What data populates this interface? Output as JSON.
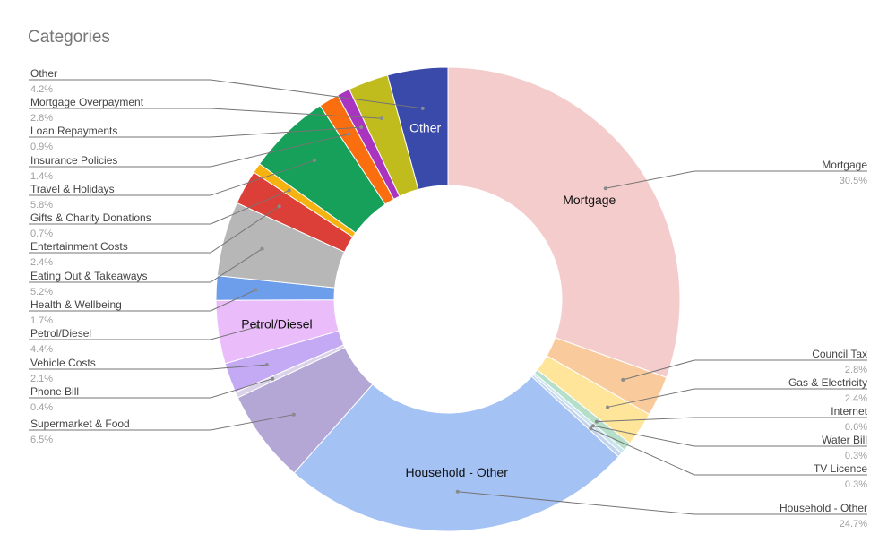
{
  "chart_data": {
    "type": "pie",
    "style": "donut",
    "title": "Categories",
    "slices": [
      {
        "name": "Mortgage",
        "value": 30.5,
        "percent_label": "30.5%",
        "color": "#f4cccc",
        "inside_label": "Mortgage"
      },
      {
        "name": "Council Tax",
        "value": 2.8,
        "percent_label": "2.8%",
        "color": "#f9cb9c"
      },
      {
        "name": "Gas & Electricity",
        "value": 2.4,
        "percent_label": "2.4%",
        "color": "#ffe599"
      },
      {
        "name": "Internet",
        "value": 0.6,
        "percent_label": "0.6%",
        "color": "#b6dfca"
      },
      {
        "name": "Water Bill",
        "value": 0.3,
        "percent_label": "0.3%",
        "color": "#c9e4ef"
      },
      {
        "name": "TV Licence",
        "value": 0.3,
        "percent_label": "0.3%",
        "color": "#c4d3ec"
      },
      {
        "name": "Household - Other",
        "value": 24.7,
        "percent_label": "24.7%",
        "color": "#a4c2f4",
        "inside_label": "Household - Other"
      },
      {
        "name": "Supermarket & Food",
        "value": 6.5,
        "percent_label": "6.5%",
        "color": "#b4a7d6"
      },
      {
        "name": "Phone Bill",
        "value": 0.4,
        "percent_label": "0.4%",
        "color": "#d9d2e9"
      },
      {
        "name": "Vehicle Costs",
        "value": 2.1,
        "percent_label": "2.1%",
        "color": "#c4a9f5"
      },
      {
        "name": "Petrol/Diesel",
        "value": 4.4,
        "percent_label": "4.4%",
        "color": "#ebbcfa",
        "inside_label": "Petrol/Diesel"
      },
      {
        "name": "Health & Wellbeing",
        "value": 1.7,
        "percent_label": "1.7%",
        "color": "#6d9eeb"
      },
      {
        "name": "Eating Out & Takeaways",
        "value": 5.2,
        "percent_label": "5.2%",
        "color": "#b7b7b7"
      },
      {
        "name": "Entertainment Costs",
        "value": 2.4,
        "percent_label": "2.4%",
        "color": "#dc3f37"
      },
      {
        "name": "Gifts & Charity Donations",
        "value": 0.7,
        "percent_label": "0.7%",
        "color": "#f6b20f"
      },
      {
        "name": "Travel & Holidays",
        "value": 5.8,
        "percent_label": "5.8%",
        "color": "#16a05a"
      },
      {
        "name": "Insurance Policies",
        "value": 1.4,
        "percent_label": "1.4%",
        "color": "#fa6e10"
      },
      {
        "name": "Loan Repayments",
        "value": 0.9,
        "percent_label": "0.9%",
        "color": "#a934c0"
      },
      {
        "name": "Mortgage Overpayment",
        "value": 2.8,
        "percent_label": "2.8%",
        "color": "#c1bc1e"
      },
      {
        "name": "Other",
        "value": 4.2,
        "percent_label": "4.2%",
        "color": "#3a4aab",
        "inside_label": "Other",
        "inside_label_color": "#ffffff"
      }
    ]
  }
}
